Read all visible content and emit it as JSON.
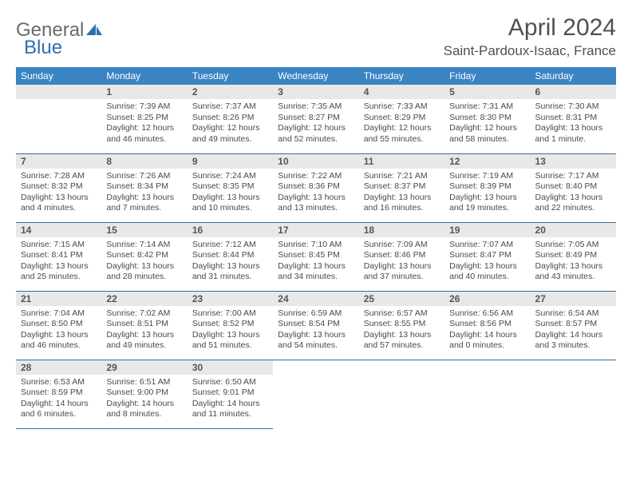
{
  "logo": {
    "text1": "General",
    "text2": "Blue"
  },
  "title": "April 2024",
  "location": "Saint-Pardoux-Isaac, France",
  "colors": {
    "header_bg": "#3b84c4",
    "header_text": "#ffffff",
    "daynum_bg": "#e8e8e8",
    "cell_border": "#3b6a95",
    "text": "#4a4a4a",
    "title_text": "#505050",
    "logo_general": "#6a6a6a",
    "logo_blue": "#2f6fb0",
    "logo_icon": "#2f6fb0"
  },
  "weekdays": [
    "Sunday",
    "Monday",
    "Tuesday",
    "Wednesday",
    "Thursday",
    "Friday",
    "Saturday"
  ],
  "weeks": [
    [
      {
        "blank": true
      },
      {
        "day": "1",
        "sunrise": "Sunrise: 7:39 AM",
        "sunset": "Sunset: 8:25 PM",
        "daylight1": "Daylight: 12 hours",
        "daylight2": "and 46 minutes."
      },
      {
        "day": "2",
        "sunrise": "Sunrise: 7:37 AM",
        "sunset": "Sunset: 8:26 PM",
        "daylight1": "Daylight: 12 hours",
        "daylight2": "and 49 minutes."
      },
      {
        "day": "3",
        "sunrise": "Sunrise: 7:35 AM",
        "sunset": "Sunset: 8:27 PM",
        "daylight1": "Daylight: 12 hours",
        "daylight2": "and 52 minutes."
      },
      {
        "day": "4",
        "sunrise": "Sunrise: 7:33 AM",
        "sunset": "Sunset: 8:29 PM",
        "daylight1": "Daylight: 12 hours",
        "daylight2": "and 55 minutes."
      },
      {
        "day": "5",
        "sunrise": "Sunrise: 7:31 AM",
        "sunset": "Sunset: 8:30 PM",
        "daylight1": "Daylight: 12 hours",
        "daylight2": "and 58 minutes."
      },
      {
        "day": "6",
        "sunrise": "Sunrise: 7:30 AM",
        "sunset": "Sunset: 8:31 PM",
        "daylight1": "Daylight: 13 hours",
        "daylight2": "and 1 minute."
      }
    ],
    [
      {
        "day": "7",
        "sunrise": "Sunrise: 7:28 AM",
        "sunset": "Sunset: 8:32 PM",
        "daylight1": "Daylight: 13 hours",
        "daylight2": "and 4 minutes."
      },
      {
        "day": "8",
        "sunrise": "Sunrise: 7:26 AM",
        "sunset": "Sunset: 8:34 PM",
        "daylight1": "Daylight: 13 hours",
        "daylight2": "and 7 minutes."
      },
      {
        "day": "9",
        "sunrise": "Sunrise: 7:24 AM",
        "sunset": "Sunset: 8:35 PM",
        "daylight1": "Daylight: 13 hours",
        "daylight2": "and 10 minutes."
      },
      {
        "day": "10",
        "sunrise": "Sunrise: 7:22 AM",
        "sunset": "Sunset: 8:36 PM",
        "daylight1": "Daylight: 13 hours",
        "daylight2": "and 13 minutes."
      },
      {
        "day": "11",
        "sunrise": "Sunrise: 7:21 AM",
        "sunset": "Sunset: 8:37 PM",
        "daylight1": "Daylight: 13 hours",
        "daylight2": "and 16 minutes."
      },
      {
        "day": "12",
        "sunrise": "Sunrise: 7:19 AM",
        "sunset": "Sunset: 8:39 PM",
        "daylight1": "Daylight: 13 hours",
        "daylight2": "and 19 minutes."
      },
      {
        "day": "13",
        "sunrise": "Sunrise: 7:17 AM",
        "sunset": "Sunset: 8:40 PM",
        "daylight1": "Daylight: 13 hours",
        "daylight2": "and 22 minutes."
      }
    ],
    [
      {
        "day": "14",
        "sunrise": "Sunrise: 7:15 AM",
        "sunset": "Sunset: 8:41 PM",
        "daylight1": "Daylight: 13 hours",
        "daylight2": "and 25 minutes."
      },
      {
        "day": "15",
        "sunrise": "Sunrise: 7:14 AM",
        "sunset": "Sunset: 8:42 PM",
        "daylight1": "Daylight: 13 hours",
        "daylight2": "and 28 minutes."
      },
      {
        "day": "16",
        "sunrise": "Sunrise: 7:12 AM",
        "sunset": "Sunset: 8:44 PM",
        "daylight1": "Daylight: 13 hours",
        "daylight2": "and 31 minutes."
      },
      {
        "day": "17",
        "sunrise": "Sunrise: 7:10 AM",
        "sunset": "Sunset: 8:45 PM",
        "daylight1": "Daylight: 13 hours",
        "daylight2": "and 34 minutes."
      },
      {
        "day": "18",
        "sunrise": "Sunrise: 7:09 AM",
        "sunset": "Sunset: 8:46 PM",
        "daylight1": "Daylight: 13 hours",
        "daylight2": "and 37 minutes."
      },
      {
        "day": "19",
        "sunrise": "Sunrise: 7:07 AM",
        "sunset": "Sunset: 8:47 PM",
        "daylight1": "Daylight: 13 hours",
        "daylight2": "and 40 minutes."
      },
      {
        "day": "20",
        "sunrise": "Sunrise: 7:05 AM",
        "sunset": "Sunset: 8:49 PM",
        "daylight1": "Daylight: 13 hours",
        "daylight2": "and 43 minutes."
      }
    ],
    [
      {
        "day": "21",
        "sunrise": "Sunrise: 7:04 AM",
        "sunset": "Sunset: 8:50 PM",
        "daylight1": "Daylight: 13 hours",
        "daylight2": "and 46 minutes."
      },
      {
        "day": "22",
        "sunrise": "Sunrise: 7:02 AM",
        "sunset": "Sunset: 8:51 PM",
        "daylight1": "Daylight: 13 hours",
        "daylight2": "and 49 minutes."
      },
      {
        "day": "23",
        "sunrise": "Sunrise: 7:00 AM",
        "sunset": "Sunset: 8:52 PM",
        "daylight1": "Daylight: 13 hours",
        "daylight2": "and 51 minutes."
      },
      {
        "day": "24",
        "sunrise": "Sunrise: 6:59 AM",
        "sunset": "Sunset: 8:54 PM",
        "daylight1": "Daylight: 13 hours",
        "daylight2": "and 54 minutes."
      },
      {
        "day": "25",
        "sunrise": "Sunrise: 6:57 AM",
        "sunset": "Sunset: 8:55 PM",
        "daylight1": "Daylight: 13 hours",
        "daylight2": "and 57 minutes."
      },
      {
        "day": "26",
        "sunrise": "Sunrise: 6:56 AM",
        "sunset": "Sunset: 8:56 PM",
        "daylight1": "Daylight: 14 hours",
        "daylight2": "and 0 minutes."
      },
      {
        "day": "27",
        "sunrise": "Sunrise: 6:54 AM",
        "sunset": "Sunset: 8:57 PM",
        "daylight1": "Daylight: 14 hours",
        "daylight2": "and 3 minutes."
      }
    ],
    [
      {
        "day": "28",
        "sunrise": "Sunrise: 6:53 AM",
        "sunset": "Sunset: 8:59 PM",
        "daylight1": "Daylight: 14 hours",
        "daylight2": "and 6 minutes."
      },
      {
        "day": "29",
        "sunrise": "Sunrise: 6:51 AM",
        "sunset": "Sunset: 9:00 PM",
        "daylight1": "Daylight: 14 hours",
        "daylight2": "and 8 minutes."
      },
      {
        "day": "30",
        "sunrise": "Sunrise: 6:50 AM",
        "sunset": "Sunset: 9:01 PM",
        "daylight1": "Daylight: 14 hours",
        "daylight2": "and 11 minutes."
      },
      {
        "blank": true,
        "trailing": true
      },
      {
        "blank": true,
        "trailing": true
      },
      {
        "blank": true,
        "trailing": true
      },
      {
        "blank": true,
        "trailing": true
      }
    ]
  ]
}
